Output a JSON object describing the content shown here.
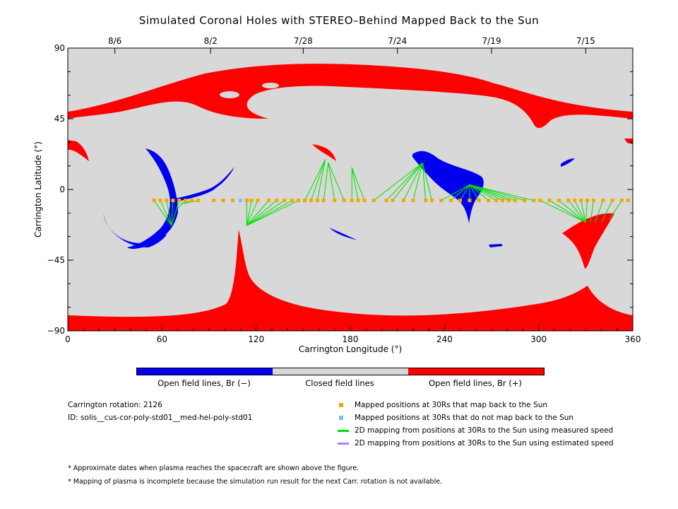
{
  "title": "Simulated Coronal Holes with STEREO–Behind Mapped Back to the Sun",
  "chart_data": {
    "type": "scatter",
    "xlabel": "Carrington Longitude (°)",
    "ylabel": "Carrington Latitude (°)",
    "xlim": [
      0,
      360
    ],
    "ylim": [
      -90,
      90
    ],
    "x_ticks": [
      "0",
      "60",
      "120",
      "180",
      "240",
      "300",
      "360"
    ],
    "y_ticks": [
      "90",
      "45",
      "0",
      "−45",
      "−90"
    ],
    "top_axis_ticks": [
      {
        "label": "8/6",
        "lon": 30
      },
      {
        "label": "8/2",
        "lon": 91
      },
      {
        "label": "7/28",
        "lon": 150
      },
      {
        "label": "7/24",
        "lon": 210
      },
      {
        "label": "7/19",
        "lon": 270
      },
      {
        "label": "7/15",
        "lon": 330
      }
    ],
    "colors": {
      "closed": "#d8d8d8",
      "open_neg": "#0000ee",
      "open_pos": "#ff0000",
      "mapped": "#f0a800",
      "unmapped": "#7fb8ff",
      "measured": "#00e000",
      "estimated": "#b080ff"
    },
    "mapped_positions": [
      {
        "lon": 55,
        "lat": -7
      },
      {
        "lon": 59,
        "lat": -7
      },
      {
        "lon": 63,
        "lat": -7
      },
      {
        "lon": 67,
        "lat": -7
      },
      {
        "lon": 71,
        "lat": -7
      },
      {
        "lon": 75,
        "lat": -7
      },
      {
        "lon": 79,
        "lat": -7
      },
      {
        "lon": 83,
        "lat": -7
      },
      {
        "lon": 93,
        "lat": -7
      },
      {
        "lon": 99,
        "lat": -7
      },
      {
        "lon": 105,
        "lat": -7
      },
      {
        "lon": 114,
        "lat": -7
      },
      {
        "lon": 117,
        "lat": -7
      },
      {
        "lon": 121,
        "lat": -7
      },
      {
        "lon": 128,
        "lat": -7
      },
      {
        "lon": 133,
        "lat": -7
      },
      {
        "lon": 138,
        "lat": -7
      },
      {
        "lon": 143,
        "lat": -7
      },
      {
        "lon": 147,
        "lat": -7
      },
      {
        "lon": 151,
        "lat": -7
      },
      {
        "lon": 155,
        "lat": -7
      },
      {
        "lon": 159,
        "lat": -7
      },
      {
        "lon": 163,
        "lat": -7
      },
      {
        "lon": 170,
        "lat": -7
      },
      {
        "lon": 176,
        "lat": -7
      },
      {
        "lon": 181,
        "lat": -7
      },
      {
        "lon": 185,
        "lat": -7
      },
      {
        "lon": 189,
        "lat": -7
      },
      {
        "lon": 195,
        "lat": -7
      },
      {
        "lon": 203,
        "lat": -7
      },
      {
        "lon": 207,
        "lat": -7
      },
      {
        "lon": 214,
        "lat": -7
      },
      {
        "lon": 220,
        "lat": -7
      },
      {
        "lon": 228,
        "lat": -7
      },
      {
        "lon": 232,
        "lat": -7
      },
      {
        "lon": 238,
        "lat": -7
      },
      {
        "lon": 244,
        "lat": -7
      },
      {
        "lon": 250,
        "lat": -7
      },
      {
        "lon": 256,
        "lat": -7
      },
      {
        "lon": 262,
        "lat": -7
      },
      {
        "lon": 268,
        "lat": -7
      },
      {
        "lon": 273,
        "lat": -7
      },
      {
        "lon": 277,
        "lat": -7
      },
      {
        "lon": 281,
        "lat": -7
      },
      {
        "lon": 285,
        "lat": -7
      },
      {
        "lon": 291,
        "lat": -7
      },
      {
        "lon": 297,
        "lat": -7
      },
      {
        "lon": 301,
        "lat": -7
      },
      {
        "lon": 307,
        "lat": -7
      },
      {
        "lon": 313,
        "lat": -7
      },
      {
        "lon": 319,
        "lat": -7
      },
      {
        "lon": 323,
        "lat": -7
      },
      {
        "lon": 327,
        "lat": -7
      },
      {
        "lon": 331,
        "lat": -7
      },
      {
        "lon": 335,
        "lat": -7
      },
      {
        "lon": 341,
        "lat": -7
      },
      {
        "lon": 347,
        "lat": -7
      },
      {
        "lon": 353,
        "lat": -7
      },
      {
        "lon": 357,
        "lat": -7
      }
    ],
    "unmapped_positions": [
      {
        "lon": 110,
        "lat": -7
      }
    ],
    "field_line_targets": [
      {
        "from": 55,
        "to_lon": 66,
        "to_lat": -23
      },
      {
        "from": 59,
        "to_lon": 66,
        "to_lat": -23
      },
      {
        "from": 63,
        "to_lon": 66,
        "to_lat": -23
      },
      {
        "from": 67,
        "to_lon": 66,
        "to_lat": -23
      },
      {
        "from": 71,
        "to_lon": 66,
        "to_lat": -23
      },
      {
        "from": 75,
        "to_lon": 70,
        "to_lat": -12
      },
      {
        "from": 79,
        "to_lon": 72,
        "to_lat": -9
      },
      {
        "from": 83,
        "to_lon": 74,
        "to_lat": -9
      },
      {
        "from": 114,
        "to_lon": 114,
        "to_lat": -23
      },
      {
        "from": 117,
        "to_lon": 114,
        "to_lat": -23
      },
      {
        "from": 121,
        "to_lon": 114,
        "to_lat": -23
      },
      {
        "from": 128,
        "to_lon": 114,
        "to_lat": -23
      },
      {
        "from": 133,
        "to_lon": 114,
        "to_lat": -23
      },
      {
        "from": 138,
        "to_lon": 114,
        "to_lat": -23
      },
      {
        "from": 143,
        "to_lon": 114,
        "to_lat": -23
      },
      {
        "from": 147,
        "to_lon": 114,
        "to_lat": -23
      },
      {
        "from": 151,
        "to_lon": 164,
        "to_lat": 19
      },
      {
        "from": 155,
        "to_lon": 164,
        "to_lat": 19
      },
      {
        "from": 159,
        "to_lon": 164,
        "to_lat": 19
      },
      {
        "from": 163,
        "to_lon": 166,
        "to_lat": 17
      },
      {
        "from": 170,
        "to_lon": 166,
        "to_lat": 17
      },
      {
        "from": 176,
        "to_lon": 166,
        "to_lat": 17
      },
      {
        "from": 181,
        "to_lon": 181,
        "to_lat": 14
      },
      {
        "from": 185,
        "to_lon": 181,
        "to_lat": 14
      },
      {
        "from": 189,
        "to_lon": 181,
        "to_lat": 14
      },
      {
        "from": 195,
        "to_lon": 226,
        "to_lat": 17
      },
      {
        "from": 203,
        "to_lon": 226,
        "to_lat": 17
      },
      {
        "from": 207,
        "to_lon": 226,
        "to_lat": 17
      },
      {
        "from": 214,
        "to_lon": 226,
        "to_lat": 17
      },
      {
        "from": 220,
        "to_lon": 226,
        "to_lat": 17
      },
      {
        "from": 228,
        "to_lon": 226,
        "to_lat": 17
      },
      {
        "from": 232,
        "to_lon": 226,
        "to_lat": 17
      },
      {
        "from": 238,
        "to_lon": 256,
        "to_lat": 3
      },
      {
        "from": 244,
        "to_lon": 256,
        "to_lat": 3
      },
      {
        "from": 250,
        "to_lon": 256,
        "to_lat": 3
      },
      {
        "from": 256,
        "to_lon": 256,
        "to_lat": 3
      },
      {
        "from": 262,
        "to_lon": 256,
        "to_lat": 3
      },
      {
        "from": 268,
        "to_lon": 256,
        "to_lat": 3
      },
      {
        "from": 273,
        "to_lon": 256,
        "to_lat": 3
      },
      {
        "from": 277,
        "to_lon": 256,
        "to_lat": 3
      },
      {
        "from": 281,
        "to_lon": 256,
        "to_lat": 3
      },
      {
        "from": 285,
        "to_lon": 256,
        "to_lat": 3
      },
      {
        "from": 291,
        "to_lon": 256,
        "to_lat": 3
      },
      {
        "from": 297,
        "to_lon": 256,
        "to_lat": 3
      },
      {
        "from": 301,
        "to_lon": 330,
        "to_lat": -21
      },
      {
        "from": 307,
        "to_lon": 330,
        "to_lat": -21
      },
      {
        "from": 313,
        "to_lon": 330,
        "to_lat": -21
      },
      {
        "from": 319,
        "to_lon": 330,
        "to_lat": -21
      },
      {
        "from": 323,
        "to_lon": 330,
        "to_lat": -21
      },
      {
        "from": 327,
        "to_lon": 330,
        "to_lat": -21
      },
      {
        "from": 331,
        "to_lon": 330,
        "to_lat": -21
      },
      {
        "from": 335,
        "to_lon": 333,
        "to_lat": -21
      },
      {
        "from": 341,
        "to_lon": 336,
        "to_lat": -21
      },
      {
        "from": 347,
        "to_lon": 340,
        "to_lat": -21
      },
      {
        "from": 353,
        "to_lon": 345,
        "to_lat": -19
      }
    ],
    "mapped_lat": -7
  },
  "colorbar": {
    "neg_label": "Open field lines, Br (−)",
    "closed_label": "Closed field lines",
    "pos_label": "Open field lines, Br (+)"
  },
  "info": {
    "rotation": "Carrington rotation: 2126",
    "id": "ID: solis__cus-cor-poly-std01__med-hel-poly-std01"
  },
  "legend": {
    "mapped": "Mapped positions at 30Rs that map back to the Sun",
    "unmapped": "Mapped positions at 30Rs that do not map back to the Sun",
    "measured": "2D mapping from positions at 30Rs to the Sun using measured speed",
    "estimated": "2D mapping from positions at 30Rs to the Sun using estimated speed"
  },
  "notes": {
    "note1": "* Approximate dates when plasma reaches the spacecraft are shown above the figure.",
    "note2": "* Mapping of plasma is incomplete because the simulation run result for the next Carr. rotation is not available."
  }
}
